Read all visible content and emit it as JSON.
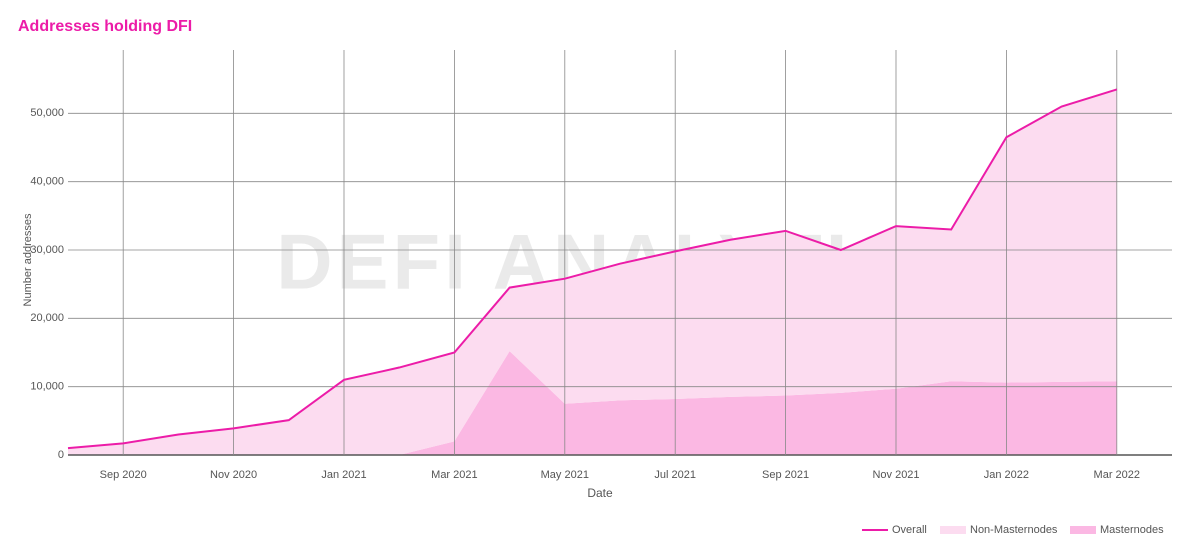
{
  "chart_data": {
    "type": "line",
    "title": "Addresses holding DFI",
    "watermark": "DEFI ANALYTICS",
    "x_label": "Date",
    "y_label": "Number addresses",
    "x": [
      "2020-08",
      "2020-09",
      "2020-10",
      "2020-11",
      "2020-12",
      "2021-01",
      "2021-02",
      "2021-03",
      "2021-04",
      "2021-05",
      "2021-06",
      "2021-07",
      "2021-08",
      "2021-09",
      "2021-10",
      "2021-11",
      "2021-12",
      "2022-01",
      "2022-02",
      "2022-03"
    ],
    "stacked": true,
    "series": [
      {
        "name": "Overall",
        "kind": "line",
        "color": "#ec1ca8",
        "values": [
          1000,
          1700,
          3000,
          3900,
          5100,
          11000,
          12800,
          15000,
          24500,
          25800,
          28000,
          29800,
          31500,
          32800,
          30000,
          33500,
          33000,
          46500,
          51000,
          53500
        ]
      },
      {
        "name": "Non-Masternodes",
        "kind": "area",
        "color": "#fcdcf0",
        "values": [
          1000,
          1700,
          3000,
          3900,
          5100,
          11000,
          12800,
          13000,
          9300,
          18300,
          20000,
          21600,
          23000,
          24100,
          20900,
          23800,
          22200,
          35900,
          40300,
          42700
        ]
      },
      {
        "name": "Masternodes",
        "kind": "area",
        "color": "#fbb8e3",
        "values": [
          0,
          0,
          0,
          0,
          0,
          0,
          0,
          2000,
          15200,
          7500,
          8000,
          8200,
          8500,
          8700,
          9100,
          9700,
          10800,
          10600,
          10700,
          10800
        ]
      }
    ],
    "xlim": [
      "2020-08",
      "2022-04"
    ],
    "xticks": [
      {
        "value": "2020-09",
        "label": "Sep 2020"
      },
      {
        "value": "2020-11",
        "label": "Nov 2020"
      },
      {
        "value": "2021-01",
        "label": "Jan 2021"
      },
      {
        "value": "2021-03",
        "label": "Mar 2021"
      },
      {
        "value": "2021-05",
        "label": "May 2021"
      },
      {
        "value": "2021-07",
        "label": "Jul 2021"
      },
      {
        "value": "2021-09",
        "label": "Sep 2021"
      },
      {
        "value": "2021-11",
        "label": "Nov 2021"
      },
      {
        "value": "2022-01",
        "label": "Jan 2022"
      },
      {
        "value": "2022-03",
        "label": "Mar 2022"
      }
    ],
    "ylim": [
      0,
      60000
    ],
    "yticks": [
      0,
      {
        "value": 10000,
        "label": "10,000"
      },
      {
        "value": 20000,
        "label": "20,000"
      },
      {
        "value": 30000,
        "label": "30,000"
      },
      {
        "value": 40000,
        "label": "40,000"
      },
      {
        "value": 50000,
        "label": "50,000"
      }
    ],
    "grid": true,
    "legend": "bottom-right"
  }
}
